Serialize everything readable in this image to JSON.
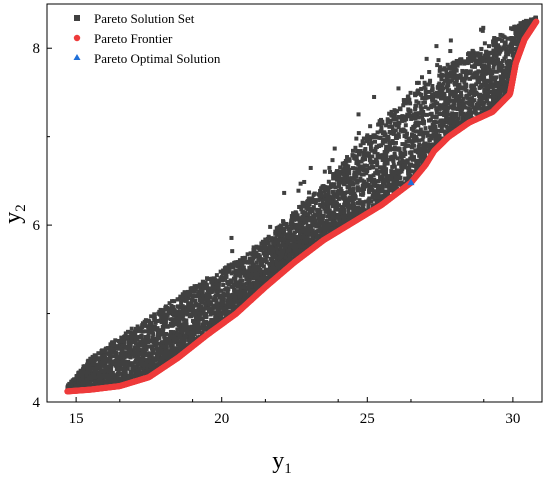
{
  "chart_data": {
    "type": "scatter",
    "title": "",
    "xlabel": "y",
    "xlabel_subscript": "1",
    "ylabel": "y",
    "ylabel_subscript": "2",
    "xlim": [
      14,
      31
    ],
    "ylim": [
      4,
      8.5
    ],
    "xticks": [
      15,
      20,
      25,
      30
    ],
    "yticks": [
      4,
      6,
      8
    ],
    "grid": false,
    "legend_position": "top-left",
    "series": [
      {
        "name": "Pareto Solution Set",
        "marker": "square",
        "color": "#404040",
        "band_lower_x": [
          14.7,
          15.5,
          16.5,
          17.5,
          18.5,
          19.5,
          20.5,
          21.5,
          22.5,
          23.5,
          24.5,
          25.5,
          26.5,
          27.0,
          27.3,
          27.8,
          28.5,
          29.3,
          29.9,
          30.1,
          30.4,
          30.8
        ],
        "band_lower_y": [
          4.14,
          4.16,
          4.2,
          4.3,
          4.52,
          4.78,
          5.02,
          5.32,
          5.6,
          5.85,
          6.05,
          6.25,
          6.5,
          6.7,
          6.86,
          7.02,
          7.18,
          7.3,
          7.5,
          7.85,
          8.12,
          8.32
        ],
        "band_upper_x": [
          14.7,
          15.5,
          16.5,
          17.5,
          18.5,
          19.5,
          20.5,
          21.5,
          22.5,
          23.5,
          24.5,
          25.5,
          26.5,
          27.5,
          28.5,
          29.5,
          30.2,
          30.8
        ],
        "band_upper_y": [
          4.18,
          4.5,
          4.75,
          4.95,
          5.2,
          5.4,
          5.6,
          5.85,
          6.15,
          6.45,
          6.85,
          7.2,
          7.5,
          7.75,
          7.95,
          8.15,
          8.28,
          8.35
        ]
      },
      {
        "name": "Pareto Frontier",
        "marker": "circle",
        "color": "#ee3b3b",
        "x": [
          14.7,
          15.5,
          16.5,
          17.5,
          18.5,
          19.5,
          20.5,
          21.5,
          22.5,
          23.5,
          24.5,
          25.5,
          26.5,
          27.0,
          27.3,
          27.8,
          28.5,
          29.3,
          29.9,
          30.1,
          30.4,
          30.8
        ],
        "y": [
          4.12,
          4.14,
          4.18,
          4.28,
          4.5,
          4.76,
          5.0,
          5.3,
          5.58,
          5.83,
          6.03,
          6.23,
          6.48,
          6.68,
          6.84,
          7.0,
          7.16,
          7.28,
          7.48,
          7.83,
          8.1,
          8.3
        ]
      },
      {
        "name": "Pareto Optimal Solution",
        "marker": "triangle",
        "color": "#1f6fd8",
        "x": [
          26.5
        ],
        "y": [
          6.48
        ]
      }
    ]
  }
}
